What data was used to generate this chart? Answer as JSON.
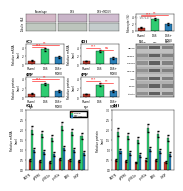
{
  "colors": {
    "normal": "#c0392b",
    "dss": "#2ecc71",
    "dss_mdivi": "#2980b9"
  },
  "top_bar": {
    "values": [
      1.0,
      3.5,
      2.0
    ],
    "errors": [
      0.12,
      0.3,
      0.2
    ],
    "ylabel": "Fibrocyte (%)",
    "ylim": [
      0,
      5.0
    ],
    "sig1": [
      0,
      1,
      4.2,
      "***"
    ],
    "sig2": [
      0,
      2,
      4.7,
      "**"
    ]
  },
  "chartC": {
    "values": [
      0.8,
      3.6,
      1.7
    ],
    "errors": [
      0.12,
      0.3,
      0.2
    ],
    "ylabel": "Relative mRNA\nlevel",
    "ylim": [
      0,
      5.0
    ],
    "sig1": [
      0,
      1,
      4.1,
      "***"
    ],
    "sig2": [
      0,
      2,
      4.6,
      "**"
    ]
  },
  "chartD": {
    "values": [
      0.8,
      3.2,
      1.5
    ],
    "errors": [
      0.1,
      0.28,
      0.18
    ],
    "ylabel": "Relative mRNA\nlevel",
    "ylim": [
      0,
      5.0
    ],
    "sig1": [
      0,
      1,
      3.9,
      "***"
    ],
    "sig2": [
      1,
      2,
      3.5,
      "ns"
    ]
  },
  "chartE": {
    "values": [
      0.8,
      3.0,
      1.5
    ],
    "errors": [
      0.1,
      0.28,
      0.2
    ],
    "ylabel": "Relative protein\nlevel",
    "ylim": [
      0,
      4.5
    ],
    "sig1": [
      0,
      1,
      3.7,
      "***"
    ],
    "sig2": [
      0,
      2,
      4.1,
      "**"
    ]
  },
  "chartF": {
    "values": [
      0.75,
      2.8,
      1.4
    ],
    "errors": [
      0.1,
      0.28,
      0.2
    ],
    "ylabel": "Relative protein\nlevel",
    "ylim": [
      0,
      4.5
    ],
    "sig1": [
      0,
      1,
      3.5,
      "***"
    ],
    "sig2": [
      1,
      2,
      3.2,
      "**"
    ]
  },
  "chartG": {
    "normal_vals": [
      0.5,
      0.45,
      0.4,
      0.55,
      0.5,
      0.45
    ],
    "dss_vals": [
      2.0,
      1.8,
      1.6,
      2.2,
      1.9,
      1.7
    ],
    "mdivi_vals": [
      1.0,
      0.9,
      0.8,
      1.1,
      1.0,
      0.85
    ],
    "errors_n": [
      0.05,
      0.05,
      0.04,
      0.06,
      0.05,
      0.05
    ],
    "errors_d": [
      0.18,
      0.15,
      0.15,
      0.2,
      0.15,
      0.15
    ],
    "errors_m": [
      0.1,
      0.1,
      0.08,
      0.12,
      0.1,
      0.1
    ],
    "ylabel": "Relative mRNA\nlevel",
    "ylim": [
      0,
      3.0
    ]
  },
  "chartH": {
    "normal_vals": [
      0.5,
      0.45,
      0.38,
      0.52,
      0.48,
      0.42
    ],
    "dss_vals": [
      1.9,
      1.7,
      1.5,
      2.1,
      1.8,
      1.6
    ],
    "mdivi_vals": [
      0.95,
      0.85,
      0.75,
      1.05,
      0.95,
      0.8
    ],
    "errors_n": [
      0.05,
      0.05,
      0.04,
      0.06,
      0.05,
      0.05
    ],
    "errors_d": [
      0.18,
      0.15,
      0.15,
      0.2,
      0.15,
      0.15
    ],
    "errors_m": [
      0.1,
      0.1,
      0.08,
      0.12,
      0.1,
      0.1
    ],
    "ylabel": "Relative protein\nlevel",
    "ylim": [
      0,
      3.0
    ]
  },
  "wb_labels": [
    "GRP78",
    "p-PERK",
    "p-IRE1α",
    "p-eIF2α",
    "ATF6",
    "CHOP",
    "β-actin"
  ],
  "cat_labels": [
    "GRP78",
    "p-PERK",
    "p-IRE1α",
    "p-eIF2α",
    "ATF6",
    "CHOP"
  ],
  "img_colors": [
    "#d4b8c8",
    "#c8b4c8",
    "#d0bcd0"
  ],
  "img_colors2": [
    "#c0c8c0",
    "#bcc4bc",
    "#c4cccc"
  ],
  "fig_bg": "#ffffff"
}
